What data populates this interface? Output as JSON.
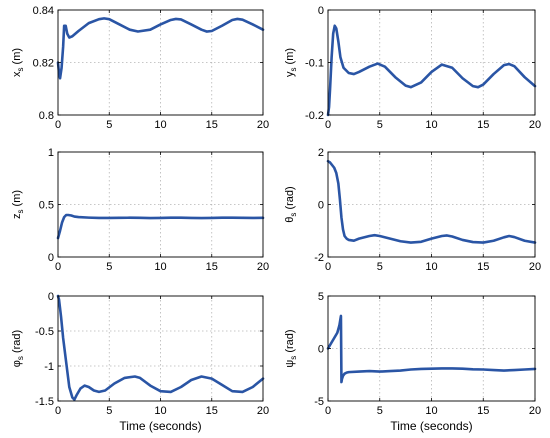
{
  "chart_data": [
    {
      "type": "line",
      "ylabel": "x_s (m)",
      "ylabel_base": "x",
      "ylabel_sub": "s",
      "ylabel_unit": " (m)",
      "xlabel": "",
      "xlim": [
        0,
        20
      ],
      "ylim": [
        0.8,
        0.84
      ],
      "xticks": [
        "0",
        "5",
        "10",
        "15",
        "20"
      ],
      "yticks": [
        "0.8",
        "0.82",
        "0.84"
      ],
      "grid": true,
      "color": "#2a55a5",
      "x": [
        0,
        0.1,
        0.2,
        0.35,
        0.5,
        0.6,
        0.75,
        0.9,
        1.1,
        1.4,
        2,
        3,
        4,
        4.5,
        5,
        6,
        7,
        7.8,
        9,
        10,
        11,
        11.5,
        12,
        13,
        14,
        14.5,
        15,
        16,
        17,
        17.5,
        18,
        19,
        20
      ],
      "y": [
        0.82,
        0.816,
        0.814,
        0.818,
        0.826,
        0.834,
        0.834,
        0.831,
        0.8295,
        0.83,
        0.832,
        0.835,
        0.8365,
        0.8368,
        0.8365,
        0.8345,
        0.8325,
        0.8318,
        0.8325,
        0.8345,
        0.8362,
        0.8366,
        0.8364,
        0.8345,
        0.8325,
        0.8318,
        0.832,
        0.834,
        0.8362,
        0.8366,
        0.8363,
        0.8345,
        0.8325
      ]
    },
    {
      "type": "line",
      "ylabel": "y_s (m)",
      "ylabel_base": "y",
      "ylabel_sub": "s",
      "ylabel_unit": " (m)",
      "xlabel": "",
      "xlim": [
        0,
        20
      ],
      "ylim": [
        -0.2,
        0
      ],
      "xticks": [
        "0",
        "5",
        "10",
        "15",
        "20"
      ],
      "yticks": [
        "-0.2",
        "-0.1",
        "0"
      ],
      "grid": true,
      "color": "#2a55a5",
      "x": [
        0,
        0.1,
        0.2,
        0.35,
        0.5,
        0.65,
        0.8,
        1,
        1.2,
        1.5,
        2,
        2.5,
        3,
        4,
        4.8,
        5.5,
        6.5,
        7.5,
        8,
        9,
        10,
        11,
        12,
        13,
        14,
        14.5,
        15,
        16,
        17,
        17.5,
        18,
        19,
        20
      ],
      "y": [
        -0.2,
        -0.185,
        -0.15,
        -0.09,
        -0.045,
        -0.03,
        -0.035,
        -0.06,
        -0.09,
        -0.11,
        -0.12,
        -0.122,
        -0.118,
        -0.108,
        -0.102,
        -0.108,
        -0.128,
        -0.144,
        -0.147,
        -0.138,
        -0.118,
        -0.104,
        -0.11,
        -0.13,
        -0.145,
        -0.147,
        -0.142,
        -0.122,
        -0.105,
        -0.103,
        -0.107,
        -0.128,
        -0.145
      ]
    },
    {
      "type": "line",
      "ylabel": "z_s (m)",
      "ylabel_base": "z",
      "ylabel_sub": "s",
      "ylabel_unit": " (m)",
      "xlabel": "",
      "xlim": [
        0,
        20
      ],
      "ylim": [
        0,
        1
      ],
      "xticks": [
        "0",
        "5",
        "10",
        "15",
        "20"
      ],
      "yticks": [
        "0",
        "0.5",
        "1"
      ],
      "grid": true,
      "color": "#2a55a5",
      "x": [
        0,
        0.2,
        0.4,
        0.6,
        0.8,
        1,
        1.3,
        1.6,
        2,
        3,
        4,
        5,
        6,
        7,
        8,
        9,
        10,
        11,
        12,
        13,
        14,
        15,
        16,
        17,
        18,
        19,
        20
      ],
      "y": [
        0.18,
        0.25,
        0.33,
        0.38,
        0.4,
        0.4,
        0.395,
        0.385,
        0.38,
        0.375,
        0.372,
        0.372,
        0.373,
        0.374,
        0.373,
        0.371,
        0.372,
        0.374,
        0.374,
        0.372,
        0.371,
        0.372,
        0.374,
        0.374,
        0.373,
        0.372,
        0.373
      ]
    },
    {
      "type": "line",
      "ylabel": "θ_s (rad)",
      "ylabel_base": "θ",
      "ylabel_sub": "s",
      "ylabel_unit": " (rad)",
      "xlabel": "",
      "xlim": [
        0,
        20
      ],
      "ylim": [
        -2,
        2
      ],
      "xticks": [
        "0",
        "5",
        "10",
        "15",
        "20"
      ],
      "yticks": [
        "-2",
        "0",
        "2"
      ],
      "grid": true,
      "color": "#2a55a5",
      "x": [
        0,
        0.2,
        0.4,
        0.6,
        0.8,
        1,
        1.15,
        1.3,
        1.45,
        1.6,
        1.8,
        2,
        2.5,
        3,
        4,
        4.5,
        5,
        6,
        7,
        8,
        9,
        10,
        11,
        11.5,
        12,
        13,
        14,
        15,
        16,
        17,
        17.5,
        18,
        19,
        20
      ],
      "y": [
        1.65,
        1.6,
        1.5,
        1.4,
        1.2,
        0.8,
        0.2,
        -0.5,
        -0.95,
        -1.2,
        -1.3,
        -1.35,
        -1.38,
        -1.3,
        -1.2,
        -1.17,
        -1.2,
        -1.3,
        -1.4,
        -1.45,
        -1.42,
        -1.3,
        -1.2,
        -1.18,
        -1.22,
        -1.35,
        -1.43,
        -1.45,
        -1.38,
        -1.25,
        -1.2,
        -1.24,
        -1.38,
        -1.45
      ]
    },
    {
      "type": "line",
      "ylabel": "φ_s (rad)",
      "ylabel_base": "φ",
      "ylabel_sub": "s",
      "ylabel_unit": " (rad)",
      "xlabel": "Time (seconds)",
      "xlim": [
        0,
        20
      ],
      "ylim": [
        -1.5,
        0
      ],
      "xticks": [
        "0",
        "5",
        "10",
        "15",
        "20"
      ],
      "yticks": [
        "-1.5",
        "-1",
        "-0.5",
        "0"
      ],
      "grid": true,
      "color": "#2a55a5",
      "x": [
        0,
        0.1,
        0.3,
        0.5,
        0.8,
        1.1,
        1.4,
        1.6,
        1.8,
        2.2,
        2.6,
        3,
        3.5,
        4,
        4.6,
        5.5,
        6.5,
        7.5,
        8,
        9,
        10,
        11,
        12,
        13,
        14,
        15,
        16,
        17,
        18,
        19,
        20
      ],
      "y": [
        0,
        -0.05,
        -0.3,
        -0.6,
        -0.95,
        -1.3,
        -1.45,
        -1.48,
        -1.42,
        -1.32,
        -1.28,
        -1.3,
        -1.35,
        -1.37,
        -1.35,
        -1.25,
        -1.17,
        -1.15,
        -1.17,
        -1.28,
        -1.36,
        -1.37,
        -1.3,
        -1.2,
        -1.15,
        -1.18,
        -1.27,
        -1.36,
        -1.37,
        -1.3,
        -1.18
      ]
    },
    {
      "type": "line",
      "ylabel": "ψ_s (rad)",
      "ylabel_base": "ψ",
      "ylabel_sub": "s",
      "ylabel_unit": " (rad)",
      "xlabel": "Time (seconds)",
      "xlim": [
        0,
        20
      ],
      "ylim": [
        -5,
        5
      ],
      "xticks": [
        "0",
        "5",
        "10",
        "15",
        "20"
      ],
      "yticks": [
        "-5",
        "0",
        "5"
      ],
      "grid": true,
      "color": "#2a55a5",
      "x": [
        0,
        0.3,
        0.6,
        0.9,
        1.1,
        1.2,
        1.25,
        1.3,
        1.35,
        1.45,
        1.6,
        1.8,
        2,
        3,
        4,
        5,
        6,
        7,
        8,
        9,
        10,
        11,
        12,
        13,
        14,
        15,
        16,
        17,
        18,
        19,
        20
      ],
      "y": [
        0,
        0.5,
        1.0,
        1.5,
        2.2,
        2.8,
        3.1,
        -3.2,
        -2.9,
        -2.6,
        -2.4,
        -2.3,
        -2.25,
        -2.2,
        -2.15,
        -2.2,
        -2.15,
        -2.1,
        -2.0,
        -1.95,
        -1.92,
        -1.9,
        -1.9,
        -1.92,
        -1.98,
        -2.0,
        -2.05,
        -2.1,
        -2.05,
        -2.0,
        -1.95
      ]
    }
  ]
}
